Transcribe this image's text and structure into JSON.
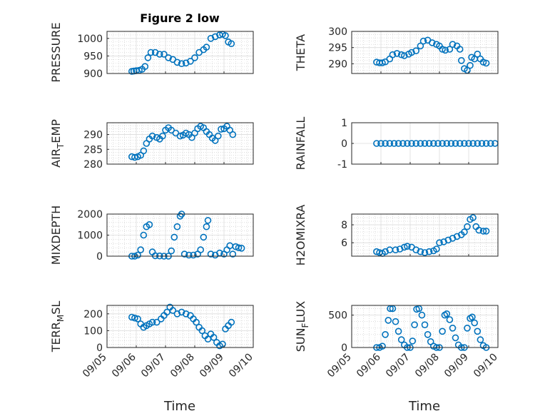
{
  "figure_title": "Figure 2 low",
  "x_label": "Time",
  "marker_color": "#0072BD",
  "chart_data": [
    {
      "type": "scatter",
      "ylabel": "PRESSURE",
      "ylim": [
        900,
        1020
      ],
      "yticks": [
        900,
        950,
        1000
      ],
      "grid": "major+minor",
      "x_range": [
        "09/05",
        "09/10"
      ],
      "xticks": [
        "09/05",
        "09/06",
        "09/07",
        "09/08",
        "09/09",
        "09/10"
      ],
      "show_xticklabels": false,
      "points": [
        [
          0.85,
          906
        ],
        [
          0.92,
          907
        ],
        [
          1.0,
          908
        ],
        [
          1.1,
          909
        ],
        [
          1.2,
          912
        ],
        [
          1.3,
          920
        ],
        [
          1.4,
          945
        ],
        [
          1.5,
          960
        ],
        [
          1.65,
          960
        ],
        [
          1.8,
          955
        ],
        [
          1.95,
          955
        ],
        [
          2.1,
          945
        ],
        [
          2.25,
          940
        ],
        [
          2.4,
          932
        ],
        [
          2.55,
          928
        ],
        [
          2.7,
          930
        ],
        [
          2.85,
          935
        ],
        [
          3.0,
          945
        ],
        [
          3.15,
          960
        ],
        [
          3.3,
          968
        ],
        [
          3.4,
          975
        ],
        [
          3.55,
          1000
        ],
        [
          3.7,
          1005
        ],
        [
          3.85,
          1010
        ],
        [
          3.95,
          1012
        ],
        [
          4.05,
          1008
        ],
        [
          4.15,
          990
        ],
        [
          4.25,
          985
        ]
      ]
    },
    {
      "type": "scatter",
      "ylabel": "THETA",
      "ylim": [
        287,
        300
      ],
      "yticks": [
        290,
        295,
        300
      ],
      "grid": "major+minor",
      "x_range": [
        "09/05",
        "09/10"
      ],
      "xticks": [
        "09/05",
        "09/06",
        "09/07",
        "09/08",
        "09/09",
        "09/10"
      ],
      "show_xticklabels": false,
      "points": [
        [
          0.85,
          290.5
        ],
        [
          0.95,
          290.3
        ],
        [
          1.05,
          290.3
        ],
        [
          1.15,
          290.6
        ],
        [
          1.3,
          291.5
        ],
        [
          1.4,
          292.8
        ],
        [
          1.55,
          293.2
        ],
        [
          1.7,
          292.8
        ],
        [
          1.8,
          292.5
        ],
        [
          1.95,
          293.0
        ],
        [
          2.05,
          293.5
        ],
        [
          2.2,
          294.0
        ],
        [
          2.35,
          295.5
        ],
        [
          2.45,
          297.0
        ],
        [
          2.6,
          297.3
        ],
        [
          2.75,
          296.5
        ],
        [
          2.9,
          296.0
        ],
        [
          3.0,
          295.5
        ],
        [
          3.1,
          294.5
        ],
        [
          3.2,
          294.2
        ],
        [
          3.35,
          294.5
        ],
        [
          3.45,
          296.0
        ],
        [
          3.6,
          295.5
        ],
        [
          3.7,
          294.5
        ],
        [
          3.75,
          291.0
        ],
        [
          3.85,
          288.5
        ],
        [
          3.95,
          288.0
        ],
        [
          4.05,
          289.5
        ],
        [
          4.1,
          292.0
        ],
        [
          4.2,
          291.5
        ],
        [
          4.3,
          293.0
        ],
        [
          4.4,
          291.5
        ],
        [
          4.5,
          290.5
        ],
        [
          4.6,
          290.2
        ]
      ]
    },
    {
      "type": "scatter",
      "ylabel": "AIR_TEMP",
      "ylim": [
        280,
        294
      ],
      "yticks": [
        280,
        285,
        290
      ],
      "grid": "major+minor",
      "x_range": [
        "09/05",
        "09/10"
      ],
      "xticks": [
        "09/05",
        "09/06",
        "09/07",
        "09/08",
        "09/09",
        "09/10"
      ],
      "show_xticklabels": false,
      "points": [
        [
          0.85,
          282.5
        ],
        [
          0.95,
          282.3
        ],
        [
          1.05,
          282.5
        ],
        [
          1.15,
          283.0
        ],
        [
          1.25,
          284.5
        ],
        [
          1.35,
          287.0
        ],
        [
          1.45,
          288.5
        ],
        [
          1.55,
          289.5
        ],
        [
          1.7,
          289.0
        ],
        [
          1.8,
          288.5
        ],
        [
          1.9,
          289.5
        ],
        [
          2.0,
          291.5
        ],
        [
          2.1,
          292.3
        ],
        [
          2.2,
          291.5
        ],
        [
          2.35,
          290.5
        ],
        [
          2.5,
          289.5
        ],
        [
          2.6,
          289.8
        ],
        [
          2.7,
          290.5
        ],
        [
          2.8,
          290.0
        ],
        [
          2.9,
          289.0
        ],
        [
          3.0,
          290.5
        ],
        [
          3.1,
          292.0
        ],
        [
          3.2,
          292.8
        ],
        [
          3.3,
          292.3
        ],
        [
          3.4,
          291.0
        ],
        [
          3.5,
          290.0
        ],
        [
          3.6,
          288.8
        ],
        [
          3.7,
          288.0
        ],
        [
          3.8,
          289.5
        ],
        [
          3.9,
          291.8
        ],
        [
          4.0,
          292.0
        ],
        [
          4.1,
          292.8
        ],
        [
          4.2,
          291.5
        ],
        [
          4.3,
          290.0
        ]
      ]
    },
    {
      "type": "scatter",
      "ylabel": "RAINFALL",
      "ylim": [
        -1,
        1
      ],
      "yticks": [
        -1,
        0,
        1
      ],
      "grid": "major",
      "x_range": [
        "09/05",
        "09/10"
      ],
      "xticks": [
        "09/05",
        "09/06",
        "09/07",
        "09/08",
        "09/09",
        "09/10"
      ],
      "show_xticklabels": false,
      "points": [
        [
          0.85,
          0
        ],
        [
          1.0,
          0
        ],
        [
          1.15,
          0
        ],
        [
          1.3,
          0
        ],
        [
          1.45,
          0
        ],
        [
          1.6,
          0
        ],
        [
          1.75,
          0
        ],
        [
          1.9,
          0
        ],
        [
          2.05,
          0
        ],
        [
          2.2,
          0
        ],
        [
          2.35,
          0
        ],
        [
          2.5,
          0
        ],
        [
          2.65,
          0
        ],
        [
          2.8,
          0
        ],
        [
          2.95,
          0
        ],
        [
          3.1,
          0
        ],
        [
          3.25,
          0
        ],
        [
          3.4,
          0
        ],
        [
          3.55,
          0
        ],
        [
          3.7,
          0
        ],
        [
          3.85,
          0
        ],
        [
          4.0,
          0
        ],
        [
          4.15,
          0
        ],
        [
          4.3,
          0
        ],
        [
          4.45,
          0
        ],
        [
          4.6,
          0
        ],
        [
          4.75,
          0
        ],
        [
          4.9,
          0
        ]
      ]
    },
    {
      "type": "scatter",
      "ylabel": "MIXDEPTH",
      "ylim": [
        0,
        2000
      ],
      "yticks": [
        0,
        1000,
        2000
      ],
      "grid": "major+minor",
      "x_range": [
        "09/05",
        "09/10"
      ],
      "xticks": [
        "09/05",
        "09/06",
        "09/07",
        "09/08",
        "09/09",
        "09/10"
      ],
      "show_xticklabels": false,
      "points": [
        [
          0.85,
          0
        ],
        [
          0.95,
          0
        ],
        [
          1.05,
          50
        ],
        [
          1.15,
          300
        ],
        [
          1.25,
          1000
        ],
        [
          1.35,
          1400
        ],
        [
          1.45,
          1500
        ],
        [
          1.55,
          200
        ],
        [
          1.65,
          20
        ],
        [
          1.8,
          10
        ],
        [
          1.95,
          0
        ],
        [
          2.1,
          0
        ],
        [
          2.2,
          250
        ],
        [
          2.3,
          900
        ],
        [
          2.4,
          1400
        ],
        [
          2.5,
          1900
        ],
        [
          2.55,
          2000
        ],
        [
          2.65,
          100
        ],
        [
          2.8,
          50
        ],
        [
          2.95,
          50
        ],
        [
          3.1,
          100
        ],
        [
          3.2,
          300
        ],
        [
          3.3,
          900
        ],
        [
          3.4,
          1400
        ],
        [
          3.45,
          1700
        ],
        [
          3.55,
          100
        ],
        [
          3.7,
          50
        ],
        [
          3.85,
          150
        ],
        [
          4.0,
          100
        ],
        [
          4.1,
          300
        ],
        [
          4.2,
          500
        ],
        [
          4.3,
          100
        ],
        [
          4.4,
          450
        ],
        [
          4.5,
          400
        ],
        [
          4.6,
          380
        ]
      ]
    },
    {
      "type": "scatter",
      "ylabel": "H2OMIXRA",
      "ylim": [
        4.5,
        9.2
      ],
      "yticks": [
        6,
        8
      ],
      "grid": "major+minor",
      "x_range": [
        "09/05",
        "09/10"
      ],
      "xticks": [
        "09/05",
        "09/06",
        "09/07",
        "09/08",
        "09/09",
        "09/10"
      ],
      "show_xticklabels": false,
      "points": [
        [
          0.85,
          5.0
        ],
        [
          0.95,
          4.9
        ],
        [
          1.05,
          4.8
        ],
        [
          1.15,
          5.0
        ],
        [
          1.3,
          5.2
        ],
        [
          1.5,
          5.2
        ],
        [
          1.65,
          5.3
        ],
        [
          1.8,
          5.5
        ],
        [
          1.9,
          5.6
        ],
        [
          2.05,
          5.5
        ],
        [
          2.2,
          5.2
        ],
        [
          2.35,
          5.0
        ],
        [
          2.5,
          4.9
        ],
        [
          2.65,
          5.0
        ],
        [
          2.8,
          5.1
        ],
        [
          2.9,
          5.3
        ],
        [
          3.0,
          6.0
        ],
        [
          3.15,
          6.1
        ],
        [
          3.3,
          6.3
        ],
        [
          3.45,
          6.5
        ],
        [
          3.6,
          6.7
        ],
        [
          3.75,
          6.9
        ],
        [
          3.85,
          7.2
        ],
        [
          3.95,
          7.8
        ],
        [
          4.05,
          8.6
        ],
        [
          4.15,
          8.8
        ],
        [
          4.25,
          7.8
        ],
        [
          4.35,
          7.4
        ],
        [
          4.5,
          7.3
        ],
        [
          4.6,
          7.3
        ]
      ]
    },
    {
      "type": "scatter",
      "ylabel": "TERR_MSL",
      "ylim": [
        0,
        250
      ],
      "yticks": [
        0,
        100,
        200
      ],
      "grid": "major+minor",
      "x_range": [
        "09/05",
        "09/10"
      ],
      "xticks": [
        "09/05",
        "09/06",
        "09/07",
        "09/08",
        "09/09",
        "09/10"
      ],
      "show_xticklabels": true,
      "points": [
        [
          0.85,
          180
        ],
        [
          0.95,
          175
        ],
        [
          1.05,
          170
        ],
        [
          1.15,
          140
        ],
        [
          1.25,
          120
        ],
        [
          1.35,
          130
        ],
        [
          1.45,
          140
        ],
        [
          1.55,
          150
        ],
        [
          1.7,
          150
        ],
        [
          1.85,
          170
        ],
        [
          1.95,
          190
        ],
        [
          2.05,
          210
        ],
        [
          2.15,
          240
        ],
        [
          2.25,
          220
        ],
        [
          2.4,
          200
        ],
        [
          2.55,
          210
        ],
        [
          2.7,
          200
        ],
        [
          2.85,
          190
        ],
        [
          2.95,
          170
        ],
        [
          3.05,
          150
        ],
        [
          3.15,
          120
        ],
        [
          3.25,
          100
        ],
        [
          3.35,
          70
        ],
        [
          3.45,
          50
        ],
        [
          3.55,
          80
        ],
        [
          3.65,
          60
        ],
        [
          3.75,
          30
        ],
        [
          3.85,
          10
        ],
        [
          3.95,
          20
        ],
        [
          4.05,
          110
        ],
        [
          4.15,
          130
        ],
        [
          4.25,
          150
        ]
      ]
    },
    {
      "type": "scatter",
      "ylabel": "SUN_FLUX",
      "ylim": [
        0,
        650
      ],
      "yticks": [
        0,
        500
      ],
      "grid": "major+minor",
      "x_range": [
        "09/05",
        "09/10"
      ],
      "xticks": [
        "09/05",
        "09/06",
        "09/07",
        "09/08",
        "09/09",
        "09/10"
      ],
      "show_xticklabels": true,
      "points": [
        [
          0.85,
          0
        ],
        [
          0.95,
          0
        ],
        [
          1.05,
          20
        ],
        [
          1.15,
          200
        ],
        [
          1.25,
          420
        ],
        [
          1.32,
          600
        ],
        [
          1.4,
          600
        ],
        [
          1.5,
          400
        ],
        [
          1.6,
          250
        ],
        [
          1.7,
          120
        ],
        [
          1.8,
          40
        ],
        [
          1.9,
          0
        ],
        [
          2.0,
          0
        ],
        [
          2.08,
          100
        ],
        [
          2.15,
          350
        ],
        [
          2.22,
          590
        ],
        [
          2.3,
          600
        ],
        [
          2.4,
          500
        ],
        [
          2.5,
          350
        ],
        [
          2.6,
          200
        ],
        [
          2.7,
          90
        ],
        [
          2.8,
          20
        ],
        [
          2.9,
          0
        ],
        [
          3.0,
          0
        ],
        [
          3.1,
          250
        ],
        [
          3.18,
          500
        ],
        [
          3.25,
          520
        ],
        [
          3.35,
          430
        ],
        [
          3.45,
          300
        ],
        [
          3.55,
          150
        ],
        [
          3.65,
          40
        ],
        [
          3.75,
          0
        ],
        [
          3.85,
          0
        ],
        [
          3.95,
          300
        ],
        [
          4.05,
          450
        ],
        [
          4.12,
          470
        ],
        [
          4.2,
          380
        ],
        [
          4.3,
          250
        ],
        [
          4.4,
          120
        ],
        [
          4.5,
          30
        ],
        [
          4.6,
          0
        ]
      ]
    }
  ]
}
